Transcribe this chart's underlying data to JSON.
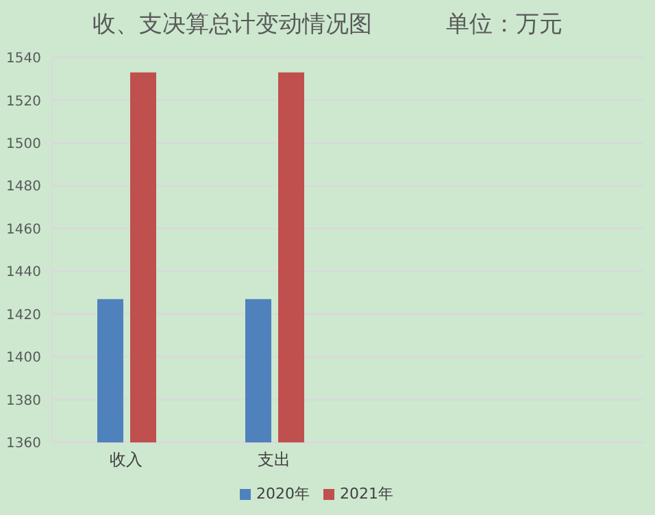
{
  "chart_data": {
    "type": "bar",
    "title": "收、支决算总计变动情况图          单位：万元",
    "categories": [
      "收入",
      "支出",
      null,
      null
    ],
    "series": [
      {
        "name": "2020年",
        "color": "#4f81bd",
        "values": [
          1427,
          1427,
          null,
          null
        ]
      },
      {
        "name": "2021年",
        "color": "#c0504d",
        "values": [
          1533,
          1533,
          null,
          null
        ]
      }
    ],
    "ylim": [
      1360,
      1540
    ],
    "yticks": [
      1360,
      1380,
      1400,
      1420,
      1440,
      1460,
      1480,
      1500,
      1520,
      1540
    ],
    "grid": "y",
    "legend": "bottom"
  }
}
